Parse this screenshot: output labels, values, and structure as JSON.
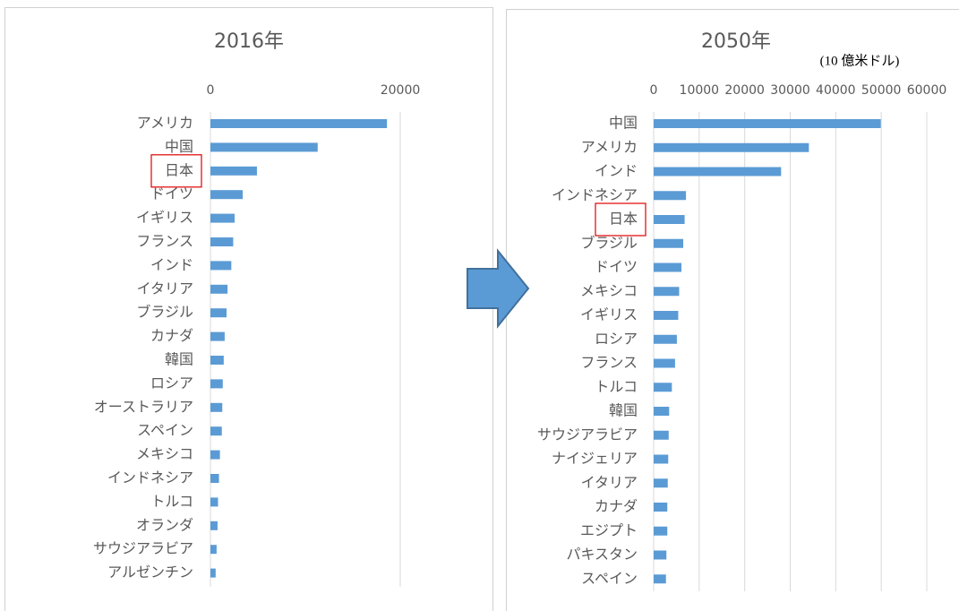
{
  "chart_data": [
    {
      "type": "barh",
      "title": "2016年",
      "color": "#5b9bd5",
      "highlight": "日本",
      "categories": [
        "アメリカ",
        "中国",
        "日本",
        "ドイツ",
        "イギリス",
        "フランス",
        "インド",
        "イタリア",
        "ブラジル",
        "カナダ",
        "韓国",
        "ロシア",
        "オーストラリア",
        "スペイン",
        "メキシコ",
        "インドネシア",
        "トルコ",
        "オランダ",
        "サウジアラビア",
        "アルゼンチン"
      ],
      "values": [
        18600,
        11300,
        4900,
        3400,
        2550,
        2400,
        2200,
        1800,
        1700,
        1500,
        1400,
        1300,
        1250,
        1200,
        1000,
        900,
        800,
        750,
        650,
        550
      ],
      "xlim": [
        0,
        20000
      ],
      "xticks": [
        0,
        20000
      ],
      "grid": true
    },
    {
      "type": "barh",
      "title": "2050年",
      "unit_label": "(10 億米ドル)",
      "color": "#5b9bd5",
      "highlight": "日本",
      "categories": [
        "中国",
        "アメリカ",
        "インド",
        "インドネシア",
        "日本",
        "ブラジル",
        "ドイツ",
        "メキシコ",
        "イギリス",
        "ロシア",
        "フランス",
        "トルコ",
        "韓国",
        "サウジアラビア",
        "ナイジェリア",
        "イタリア",
        "カナダ",
        "エジプト",
        "パキスタン",
        "スペイン"
      ],
      "values": [
        49900,
        34100,
        28000,
        7100,
        6800,
        6500,
        6100,
        5600,
        5400,
        5100,
        4700,
        4000,
        3400,
        3300,
        3200,
        3100,
        3000,
        3000,
        2800,
        2700
      ],
      "xlim": [
        0,
        60000
      ],
      "xticks": [
        0,
        10000,
        20000,
        30000,
        40000,
        50000,
        60000
      ],
      "grid": true
    }
  ]
}
